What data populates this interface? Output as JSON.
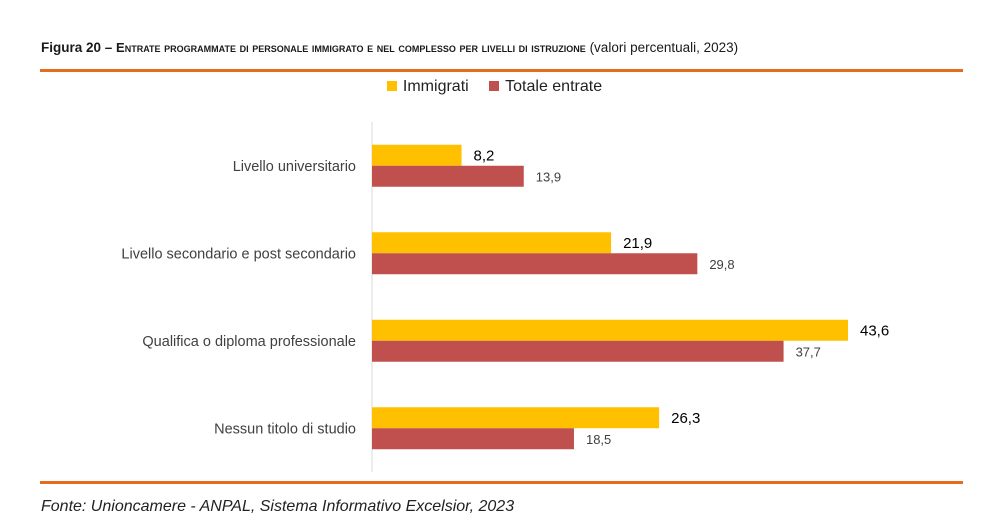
{
  "header": {
    "figure_label": "Figura 20 –",
    "title_main": "Entrate programmate di personale immigrato e nel complesso per livelli di istruzione",
    "title_paren": "(valori percentuali, 2023)"
  },
  "footer": {
    "source": "Fonte: Unioncamere - ANPAL, Sistema Informativo Excelsior, 2023"
  },
  "chart_data": {
    "type": "bar",
    "orientation": "horizontal",
    "title": "Figura 20 – Entrate programmate di personale immigrato e nel complesso per livelli di istruzione (valori percentuali, 2023)",
    "categories": [
      "Livello universitario",
      "Livello secondario e post secondario",
      "Qualifica o diploma professionale",
      "Nessun titolo di studio"
    ],
    "series": [
      {
        "name": "Immigrati",
        "color": "#FFC000",
        "values": [
          8.2,
          21.9,
          43.6,
          26.3
        ],
        "labels": [
          "8,2",
          "21,9",
          "43,6",
          "26,3"
        ]
      },
      {
        "name": "Totale entrate",
        "color": "#C0504D",
        "values": [
          13.9,
          29.8,
          37.7,
          18.5
        ],
        "labels": [
          "13,9",
          "29,8",
          "37,7",
          "18,5"
        ]
      }
    ],
    "xlim": [
      0,
      43.6
    ],
    "grid": false,
    "legend_position": "top"
  }
}
